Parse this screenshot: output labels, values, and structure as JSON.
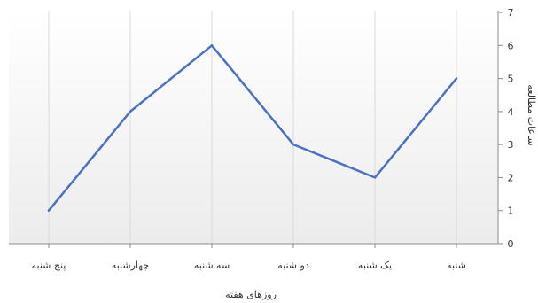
{
  "chart_data": {
    "type": "line",
    "categories": [
      "پنج شنبه",
      "چهارشنبه",
      "سه شنبه",
      "دو شنبه",
      "یک شنبه",
      "شنبه"
    ],
    "values": [
      1,
      4,
      6,
      3,
      2,
      5
    ],
    "xlabel": "روزهای هفته",
    "ylabel": "ساعات مطالعه",
    "ylim": [
      0,
      7
    ],
    "yticks": [
      "0",
      "1",
      "2",
      "3",
      "4",
      "5",
      "6",
      "7"
    ],
    "y_axis_side": "right",
    "grid": true,
    "line_color": "#4a72c0"
  }
}
